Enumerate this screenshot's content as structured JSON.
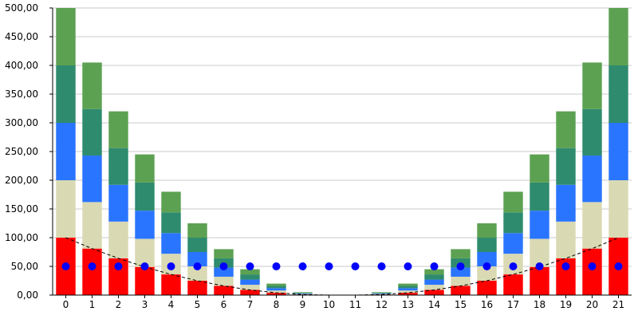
{
  "chart_data": {
    "type": "bar",
    "stacked": true,
    "categories": [
      "0",
      "1",
      "2",
      "3",
      "4",
      "5",
      "6",
      "7",
      "8",
      "9",
      "10",
      "11",
      "12",
      "13",
      "14",
      "15",
      "16",
      "17",
      "18",
      "19",
      "20",
      "21"
    ],
    "ylim": [
      0,
      500
    ],
    "yticks": [
      "0,00",
      "50,00",
      "100,00",
      "150,00",
      "200,00",
      "250,00",
      "300,00",
      "350,00",
      "400,00",
      "450,00",
      "500,00"
    ],
    "grid": true,
    "legend": "none",
    "series": [
      {
        "color": "#ff0000",
        "values": [
          100,
          81,
          64,
          49,
          36,
          25,
          16,
          9,
          4,
          1,
          0,
          0,
          1,
          4,
          9,
          16,
          25,
          36,
          49,
          64,
          81,
          100
        ]
      },
      {
        "color": "#d9d9b3",
        "values": [
          100,
          81,
          64,
          49,
          36,
          25,
          16,
          9,
          4,
          1,
          0,
          0,
          1,
          4,
          9,
          16,
          25,
          36,
          49,
          64,
          81,
          100
        ]
      },
      {
        "color": "#2a75ff",
        "values": [
          100,
          81,
          64,
          49,
          36,
          25,
          16,
          9,
          4,
          1,
          0,
          0,
          1,
          4,
          9,
          16,
          25,
          36,
          49,
          64,
          81,
          100
        ]
      },
      {
        "color": "#2e8b6e",
        "values": [
          100,
          81,
          64,
          49,
          36,
          25,
          16,
          9,
          4,
          1,
          0,
          0,
          1,
          4,
          9,
          16,
          25,
          36,
          49,
          64,
          81,
          100
        ]
      },
      {
        "color": "#5ca152",
        "values": [
          100,
          81,
          64,
          49,
          36,
          25,
          16,
          9,
          4,
          1,
          0,
          0,
          1,
          4,
          9,
          16,
          25,
          36,
          49,
          64,
          81,
          100
        ]
      }
    ],
    "line_series": {
      "color": "#000000",
      "style": "dashed",
      "values": [
        100,
        81,
        64,
        49,
        36,
        25,
        16,
        9,
        4,
        1,
        0,
        0,
        1,
        4,
        9,
        16,
        25,
        36,
        49,
        64,
        81,
        100
      ]
    },
    "scatter_series": {
      "color": "#0000ff",
      "values": [
        50,
        50,
        50,
        50,
        50,
        50,
        50,
        50,
        50,
        50,
        50,
        50,
        50,
        50,
        50,
        50,
        50,
        50,
        50,
        50,
        50,
        50
      ]
    }
  }
}
